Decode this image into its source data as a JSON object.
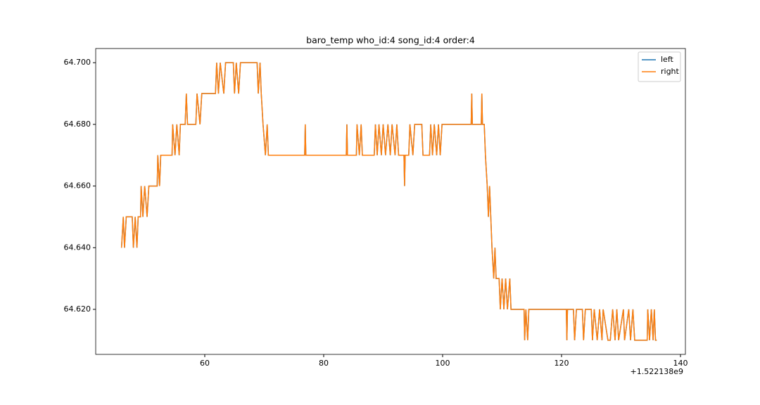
{
  "chart_data": {
    "type": "line",
    "title": "baro_temp who_id:4 song_id:4 order:4",
    "x_offset_label": "+1.522138e9",
    "xlim": [
      41.66,
      140.83
    ],
    "ylim": [
      64.6054,
      64.7046
    ],
    "xticks": [
      60,
      80,
      100,
      120,
      140
    ],
    "yticks": [
      {
        "value": 64.62,
        "label": "64.620"
      },
      {
        "value": 64.64,
        "label": "64.640"
      },
      {
        "value": 64.66,
        "label": "64.660"
      },
      {
        "value": 64.68,
        "label": "64.680"
      },
      {
        "value": 64.7,
        "label": "64.700"
      }
    ],
    "legend": "upper right",
    "grid": false,
    "x": [
      46.0,
      46.3,
      46.5,
      46.8,
      47.8,
      48.0,
      48.3,
      48.6,
      48.8,
      49.2,
      49.3,
      49.6,
      49.9,
      50.3,
      50.6,
      52.0,
      52.1,
      52.4,
      52.6,
      54.5,
      54.6,
      55.0,
      55.3,
      55.7,
      55.9,
      56.7,
      56.9,
      57.1,
      58.5,
      58.7,
      59.2,
      59.5,
      61.8,
      62.0,
      62.3,
      62.6,
      63.2,
      63.5,
      64.8,
      65.0,
      65.3,
      65.7,
      66.0,
      68.8,
      69.0,
      69.3,
      69.5,
      69.8,
      70.2,
      70.5,
      70.7,
      76.8,
      76.9,
      77.0,
      83.8,
      83.9,
      84.0,
      85.5,
      85.6,
      86.0,
      86.3,
      86.5,
      88.5,
      88.7,
      89.0,
      89.3,
      89.7,
      90.0,
      90.4,
      90.8,
      91.2,
      91.5,
      92.0,
      92.3,
      92.6,
      93.5,
      93.6,
      93.7,
      94.3,
      94.5,
      95.0,
      95.3,
      96.5,
      96.7,
      97.8,
      98.0,
      98.3,
      98.6,
      99.0,
      99.3,
      99.6,
      99.9,
      104.8,
      104.9,
      105.0,
      106.5,
      106.6,
      106.7,
      107.0,
      107.2,
      107.5,
      107.7,
      107.9,
      108.1,
      108.3,
      108.6,
      108.8,
      109.0,
      109.5,
      109.7,
      110.0,
      110.3,
      110.6,
      110.9,
      111.3,
      111.5,
      113.7,
      113.8,
      114.0,
      114.3,
      114.5,
      120.8,
      120.9,
      121.0,
      122.0,
      122.2,
      122.5,
      123.5,
      123.7,
      124.0,
      125.0,
      125.2,
      125.5,
      126.0,
      126.4,
      126.8,
      127.0,
      127.8,
      128.2,
      128.6,
      129.0,
      129.3,
      129.6,
      130.4,
      130.6,
      131.3,
      131.6,
      132.0,
      132.3,
      134.4,
      134.5,
      134.8,
      135.1,
      135.4,
      135.6,
      135.8,
      136.0
    ],
    "series": [
      {
        "name": "left",
        "color": "#1f77b4",
        "values": [
          64.64,
          64.65,
          64.64,
          64.65,
          64.65,
          64.64,
          64.65,
          64.64,
          64.65,
          64.65,
          64.66,
          64.65,
          64.66,
          64.65,
          64.66,
          64.66,
          64.67,
          64.66,
          64.67,
          64.67,
          64.68,
          64.67,
          64.68,
          64.67,
          64.68,
          64.68,
          64.69,
          64.68,
          64.68,
          64.69,
          64.68,
          64.69,
          64.69,
          64.7,
          64.69,
          64.7,
          64.69,
          64.7,
          64.7,
          64.69,
          64.7,
          64.69,
          64.7,
          64.7,
          64.69,
          64.7,
          64.69,
          64.68,
          64.67,
          64.68,
          64.67,
          64.67,
          64.68,
          64.67,
          64.67,
          64.68,
          64.67,
          64.67,
          64.68,
          64.67,
          64.68,
          64.67,
          64.67,
          64.68,
          64.67,
          64.68,
          64.67,
          64.68,
          64.67,
          64.68,
          64.67,
          64.68,
          64.67,
          64.68,
          64.67,
          64.67,
          64.66,
          64.67,
          64.67,
          64.68,
          64.67,
          64.68,
          64.68,
          64.67,
          64.67,
          64.68,
          64.67,
          64.68,
          64.67,
          64.68,
          64.67,
          64.68,
          64.68,
          64.69,
          64.68,
          64.68,
          64.69,
          64.68,
          64.68,
          64.67,
          64.66,
          64.65,
          64.66,
          64.65,
          64.64,
          64.63,
          64.64,
          64.63,
          64.63,
          64.62,
          64.63,
          64.62,
          64.63,
          64.62,
          64.63,
          64.62,
          64.62,
          64.61,
          64.62,
          64.61,
          64.62,
          64.62,
          64.61,
          64.62,
          64.62,
          64.61,
          64.62,
          64.62,
          64.61,
          64.62,
          64.62,
          64.61,
          64.62,
          64.61,
          64.62,
          64.61,
          64.62,
          64.61,
          64.61,
          64.62,
          64.61,
          64.62,
          64.61,
          64.62,
          64.61,
          64.62,
          64.61,
          64.62,
          64.61,
          64.61,
          64.62,
          64.61,
          64.62,
          64.61,
          64.62,
          64.61,
          64.61
        ]
      },
      {
        "name": "right",
        "color": "#ff7f0e",
        "values": [
          64.64,
          64.65,
          64.64,
          64.65,
          64.65,
          64.64,
          64.65,
          64.64,
          64.65,
          64.65,
          64.66,
          64.65,
          64.66,
          64.65,
          64.66,
          64.66,
          64.67,
          64.66,
          64.67,
          64.67,
          64.68,
          64.67,
          64.68,
          64.67,
          64.68,
          64.68,
          64.69,
          64.68,
          64.68,
          64.69,
          64.68,
          64.69,
          64.69,
          64.7,
          64.69,
          64.7,
          64.69,
          64.7,
          64.7,
          64.69,
          64.7,
          64.69,
          64.7,
          64.7,
          64.69,
          64.7,
          64.69,
          64.68,
          64.67,
          64.68,
          64.67,
          64.67,
          64.68,
          64.67,
          64.67,
          64.68,
          64.67,
          64.67,
          64.68,
          64.67,
          64.68,
          64.67,
          64.67,
          64.68,
          64.67,
          64.68,
          64.67,
          64.68,
          64.67,
          64.68,
          64.67,
          64.68,
          64.67,
          64.68,
          64.67,
          64.67,
          64.66,
          64.67,
          64.67,
          64.68,
          64.67,
          64.68,
          64.68,
          64.67,
          64.67,
          64.68,
          64.67,
          64.68,
          64.67,
          64.68,
          64.67,
          64.68,
          64.68,
          64.69,
          64.68,
          64.68,
          64.69,
          64.68,
          64.68,
          64.67,
          64.66,
          64.65,
          64.66,
          64.65,
          64.64,
          64.63,
          64.64,
          64.63,
          64.63,
          64.62,
          64.63,
          64.62,
          64.63,
          64.62,
          64.63,
          64.62,
          64.62,
          64.61,
          64.62,
          64.61,
          64.62,
          64.62,
          64.61,
          64.62,
          64.62,
          64.61,
          64.62,
          64.62,
          64.61,
          64.62,
          64.62,
          64.61,
          64.62,
          64.61,
          64.62,
          64.61,
          64.62,
          64.61,
          64.61,
          64.62,
          64.61,
          64.62,
          64.61,
          64.62,
          64.61,
          64.62,
          64.61,
          64.62,
          64.61,
          64.61,
          64.62,
          64.61,
          64.62,
          64.61,
          64.62,
          64.61,
          64.61
        ]
      }
    ]
  }
}
